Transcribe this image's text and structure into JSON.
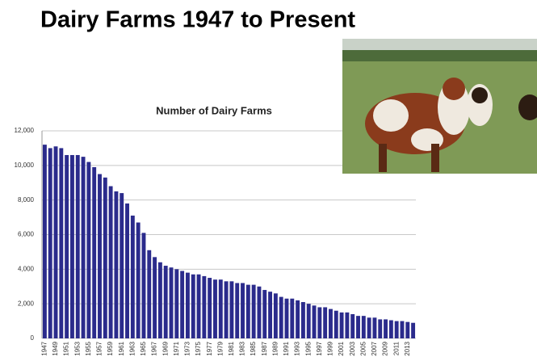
{
  "slide": {
    "title": "Dairy Farms 1947 to Present"
  },
  "chart_data": {
    "type": "bar",
    "title": "Number of Dairy Farms",
    "color": "#2b2b8c",
    "grid": true,
    "categories": [
      "1947",
      null,
      "1949",
      null,
      "1951",
      null,
      "1953",
      null,
      "1955",
      null,
      "1957",
      null,
      "1959",
      null,
      "1961",
      null,
      "1963",
      null,
      "1965",
      null,
      "1967",
      null,
      "1969",
      null,
      "1971",
      null,
      "1973",
      null,
      "1975",
      null,
      "1977",
      null,
      "1979",
      null,
      "1981",
      null,
      "1983",
      null,
      "1985",
      null,
      "1987",
      null,
      "1989",
      null,
      "1991",
      null,
      "1993",
      null,
      "1995",
      null,
      "1997",
      null,
      "1999",
      null,
      "2001",
      null,
      "2003",
      null,
      "2005",
      null,
      "2007",
      null,
      "2009",
      null,
      "2011",
      null,
      "2013",
      null
    ],
    "values": [
      11200,
      11000,
      11100,
      11000,
      10600,
      10600,
      10600,
      10500,
      10200,
      9900,
      9500,
      9300,
      8800,
      8500,
      8400,
      7800,
      7100,
      6700,
      6100,
      5100,
      4700,
      4400,
      4200,
      4100,
      4000,
      3900,
      3800,
      3700,
      3700,
      3600,
      3500,
      3400,
      3400,
      3300,
      3300,
      3200,
      3200,
      3100,
      3100,
      3000,
      2800,
      2700,
      2600,
      2400,
      2300,
      2300,
      2200,
      2100,
      2000,
      1900,
      1800,
      1800,
      1700,
      1600,
      1500,
      1500,
      1400,
      1300,
      1300,
      1200,
      1200,
      1100,
      1100,
      1050,
      1000,
      1000,
      950,
      900
    ],
    "ylim": [
      0,
      12000
    ],
    "yticks": [
      0,
      {
        "value": 2000,
        "label": "2,000"
      },
      {
        "value": 4000,
        "label": "4,000"
      },
      {
        "value": 6000,
        "label": "6,000"
      },
      {
        "value": 8000,
        "label": "8,000"
      },
      {
        "value": 10000,
        "label": "10,000"
      },
      {
        "value": 12000,
        "label": "12,000"
      }
    ]
  }
}
